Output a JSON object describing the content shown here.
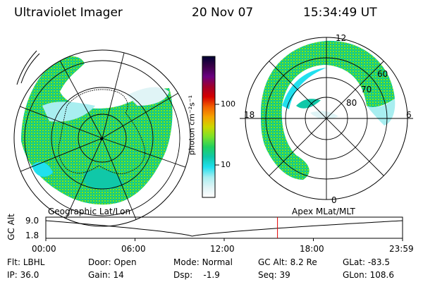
{
  "header": {
    "instrument": "Ultraviolet Imager",
    "date": "20 Nov 07",
    "time": "15:34:49 UT"
  },
  "colorbar": {
    "unit_label": "photon cm⁻²s⁻¹",
    "ticks": [
      "100",
      "10"
    ],
    "colors": [
      "#000033",
      "#3a0048",
      "#6a0080",
      "#a0002c",
      "#d40000",
      "#f26000",
      "#f5a300",
      "#ccd800",
      "#7ae22a",
      "#20d060",
      "#10c8a8",
      "#20e0ee",
      "#a8eef0",
      "#e0f4f6",
      "#ffffff"
    ]
  },
  "geo_map": {
    "label": "Geographic Lat/Lon"
  },
  "apex_map": {
    "label": "Apex MLat/MLT",
    "mlt_labels": {
      "top": "12",
      "bottom": "0",
      "left": "18",
      "right": "6"
    },
    "lat_labels": [
      "60",
      "70",
      "80"
    ]
  },
  "gc_alt_plot": {
    "ylabel": "GC Alt",
    "y_ticks": [
      "9.0",
      "1.8"
    ],
    "x_ticks": [
      "00:00",
      "06:00",
      "12:00",
      "18:00",
      "23:59"
    ],
    "current_time_fraction": 0.6494,
    "curve_color": "#000000",
    "marker_color": "#e00000"
  },
  "info": {
    "row1": [
      {
        "label": "Flt:",
        "value": "LBHL"
      },
      {
        "label": "Door:",
        "value": "Open"
      },
      {
        "label": "Mode:",
        "value": "Normal"
      },
      {
        "label": "GC Alt:",
        "value": "8.2 Re"
      },
      {
        "label": "GLat:",
        "value": "-83.5"
      }
    ],
    "row2": [
      {
        "label": "IP:",
        "value": "36.0"
      },
      {
        "label": "Gain:",
        "value": "14"
      },
      {
        "label": "Dsp:",
        "value": "-1.9"
      },
      {
        "label": "Seq:",
        "value": "39"
      },
      {
        "label": "GLon:",
        "value": "108.6"
      }
    ]
  }
}
